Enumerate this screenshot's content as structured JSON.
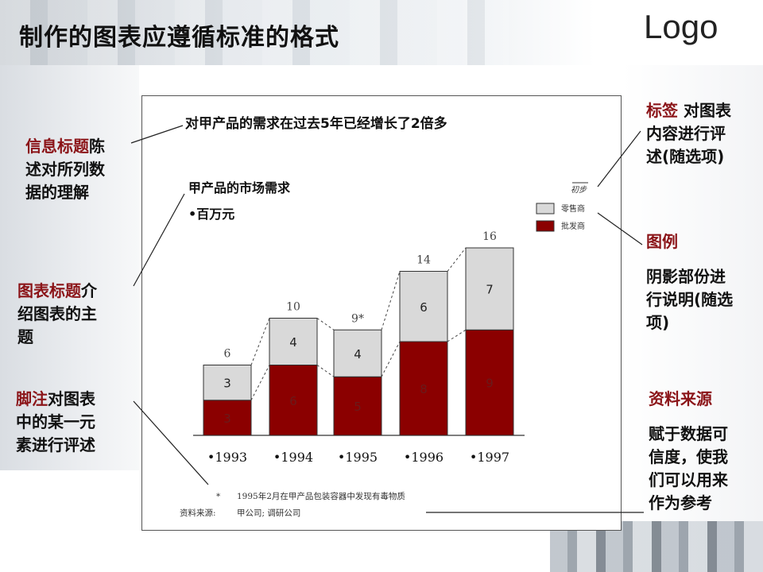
{
  "slide": {
    "title": "制作的图表应遵循标准的格式",
    "logo": "Logo"
  },
  "annotations": {
    "info_title": {
      "accent": "信息标题",
      "rest_line1": "陈",
      "line2": "述对所列数",
      "line3": "据的理解"
    },
    "chart_title": {
      "accent": "图表标题",
      "rest_line1": "介",
      "line2": "绍图表的主",
      "line3": "题"
    },
    "footnote": {
      "accent": "脚注",
      "rest_line1": "对图表",
      "line2": "中的某一元",
      "line3": "素进行评述"
    },
    "tag": {
      "accent": "标签",
      "rest_line1": "对图表",
      "line2": "内容进行评",
      "line3": "述(随选项)"
    },
    "legend": {
      "accent": "图例",
      "line2": "阴影部份进",
      "line3": "行说明(随选",
      "line4": "项)"
    },
    "source": {
      "accent": "资料来源",
      "line2": "赋于数据可",
      "line3": "信度，使我",
      "line4": "们可以用来",
      "line5": "作为参考"
    }
  },
  "chart_data": {
    "type": "bar",
    "headline": "对甲产品的需求在过去5年已经增长了2倍多",
    "title": "甲产品的市场需求",
    "subtitle": "•百万元",
    "stamp": "初步",
    "categories": [
      "•1993",
      "•1994",
      "•1995",
      "•1996",
      "•1997"
    ],
    "series": [
      {
        "name": "批发商",
        "values": [
          3,
          6,
          5,
          8,
          9
        ],
        "color": "#8b0000"
      },
      {
        "name": "零售商",
        "values": [
          3,
          4,
          4,
          6,
          7
        ],
        "color": "#d9d9d9"
      }
    ],
    "totals": [
      "6",
      "10",
      "9*",
      "14",
      "16"
    ],
    "ylim": [
      0,
      16
    ],
    "stacked": true,
    "footnote_mark": "*",
    "footnote_text": "1995年2月在甲产品包装容器中发现有毒物质",
    "source_label": "资料来源:",
    "source_text": "甲公司; 调研公司"
  }
}
